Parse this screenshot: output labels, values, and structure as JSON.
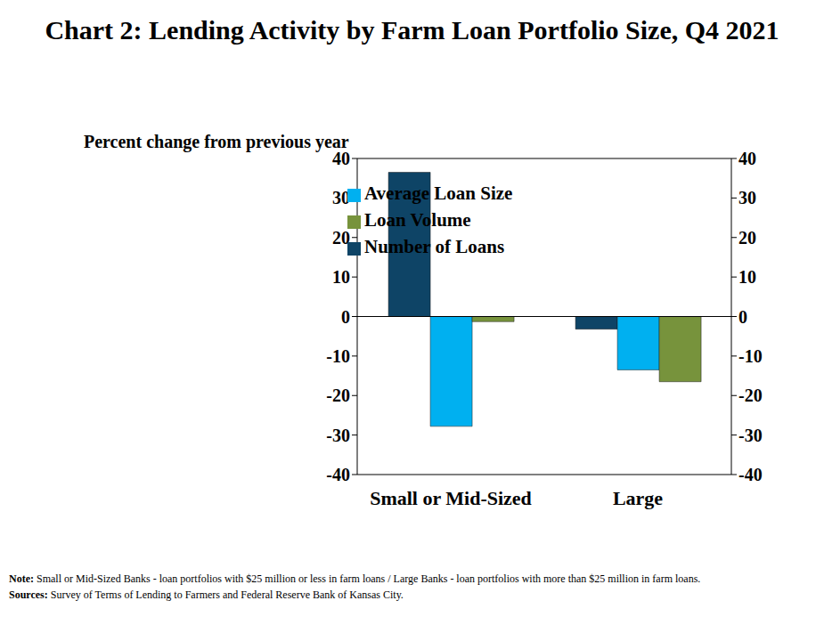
{
  "chart_data": {
    "type": "bar",
    "title": "Chart 2: Lending Activity by Farm Loan Portfolio Size, Q4 2021",
    "y_label": "Percent change from previous year",
    "categories": [
      "Small or Mid-Sized",
      "Large"
    ],
    "series": [
      {
        "name": "Number of Loans",
        "color": "#0e4466",
        "values": [
          36.5,
          -3.2
        ]
      },
      {
        "name": "Average Loan Size",
        "color": "#00b0f0",
        "values": [
          -27.8,
          -13.5
        ]
      },
      {
        "name": "Loan Volume",
        "color": "#77933c",
        "values": [
          -1.3,
          -16.5
        ]
      }
    ],
    "ylim": [
      -40,
      40
    ],
    "yticks": [
      -40,
      -30,
      -20,
      -10,
      0,
      10,
      20,
      30,
      40
    ],
    "y2lim": [
      -40,
      40
    ],
    "y2ticks": [
      -40,
      -30,
      -20,
      -10,
      0,
      10,
      20,
      30,
      40
    ],
    "legend": "top",
    "grid": false,
    "note": "Note: Small or Mid-Sized Banks - loan portfolios with $25 million or less in farm loans / Large Banks - loan portfolios with more than $25 million in farm loans.",
    "sources": "Sources: Survey of Terms of Lending to Farmers and Federal Reserve Bank of Kansas City."
  }
}
